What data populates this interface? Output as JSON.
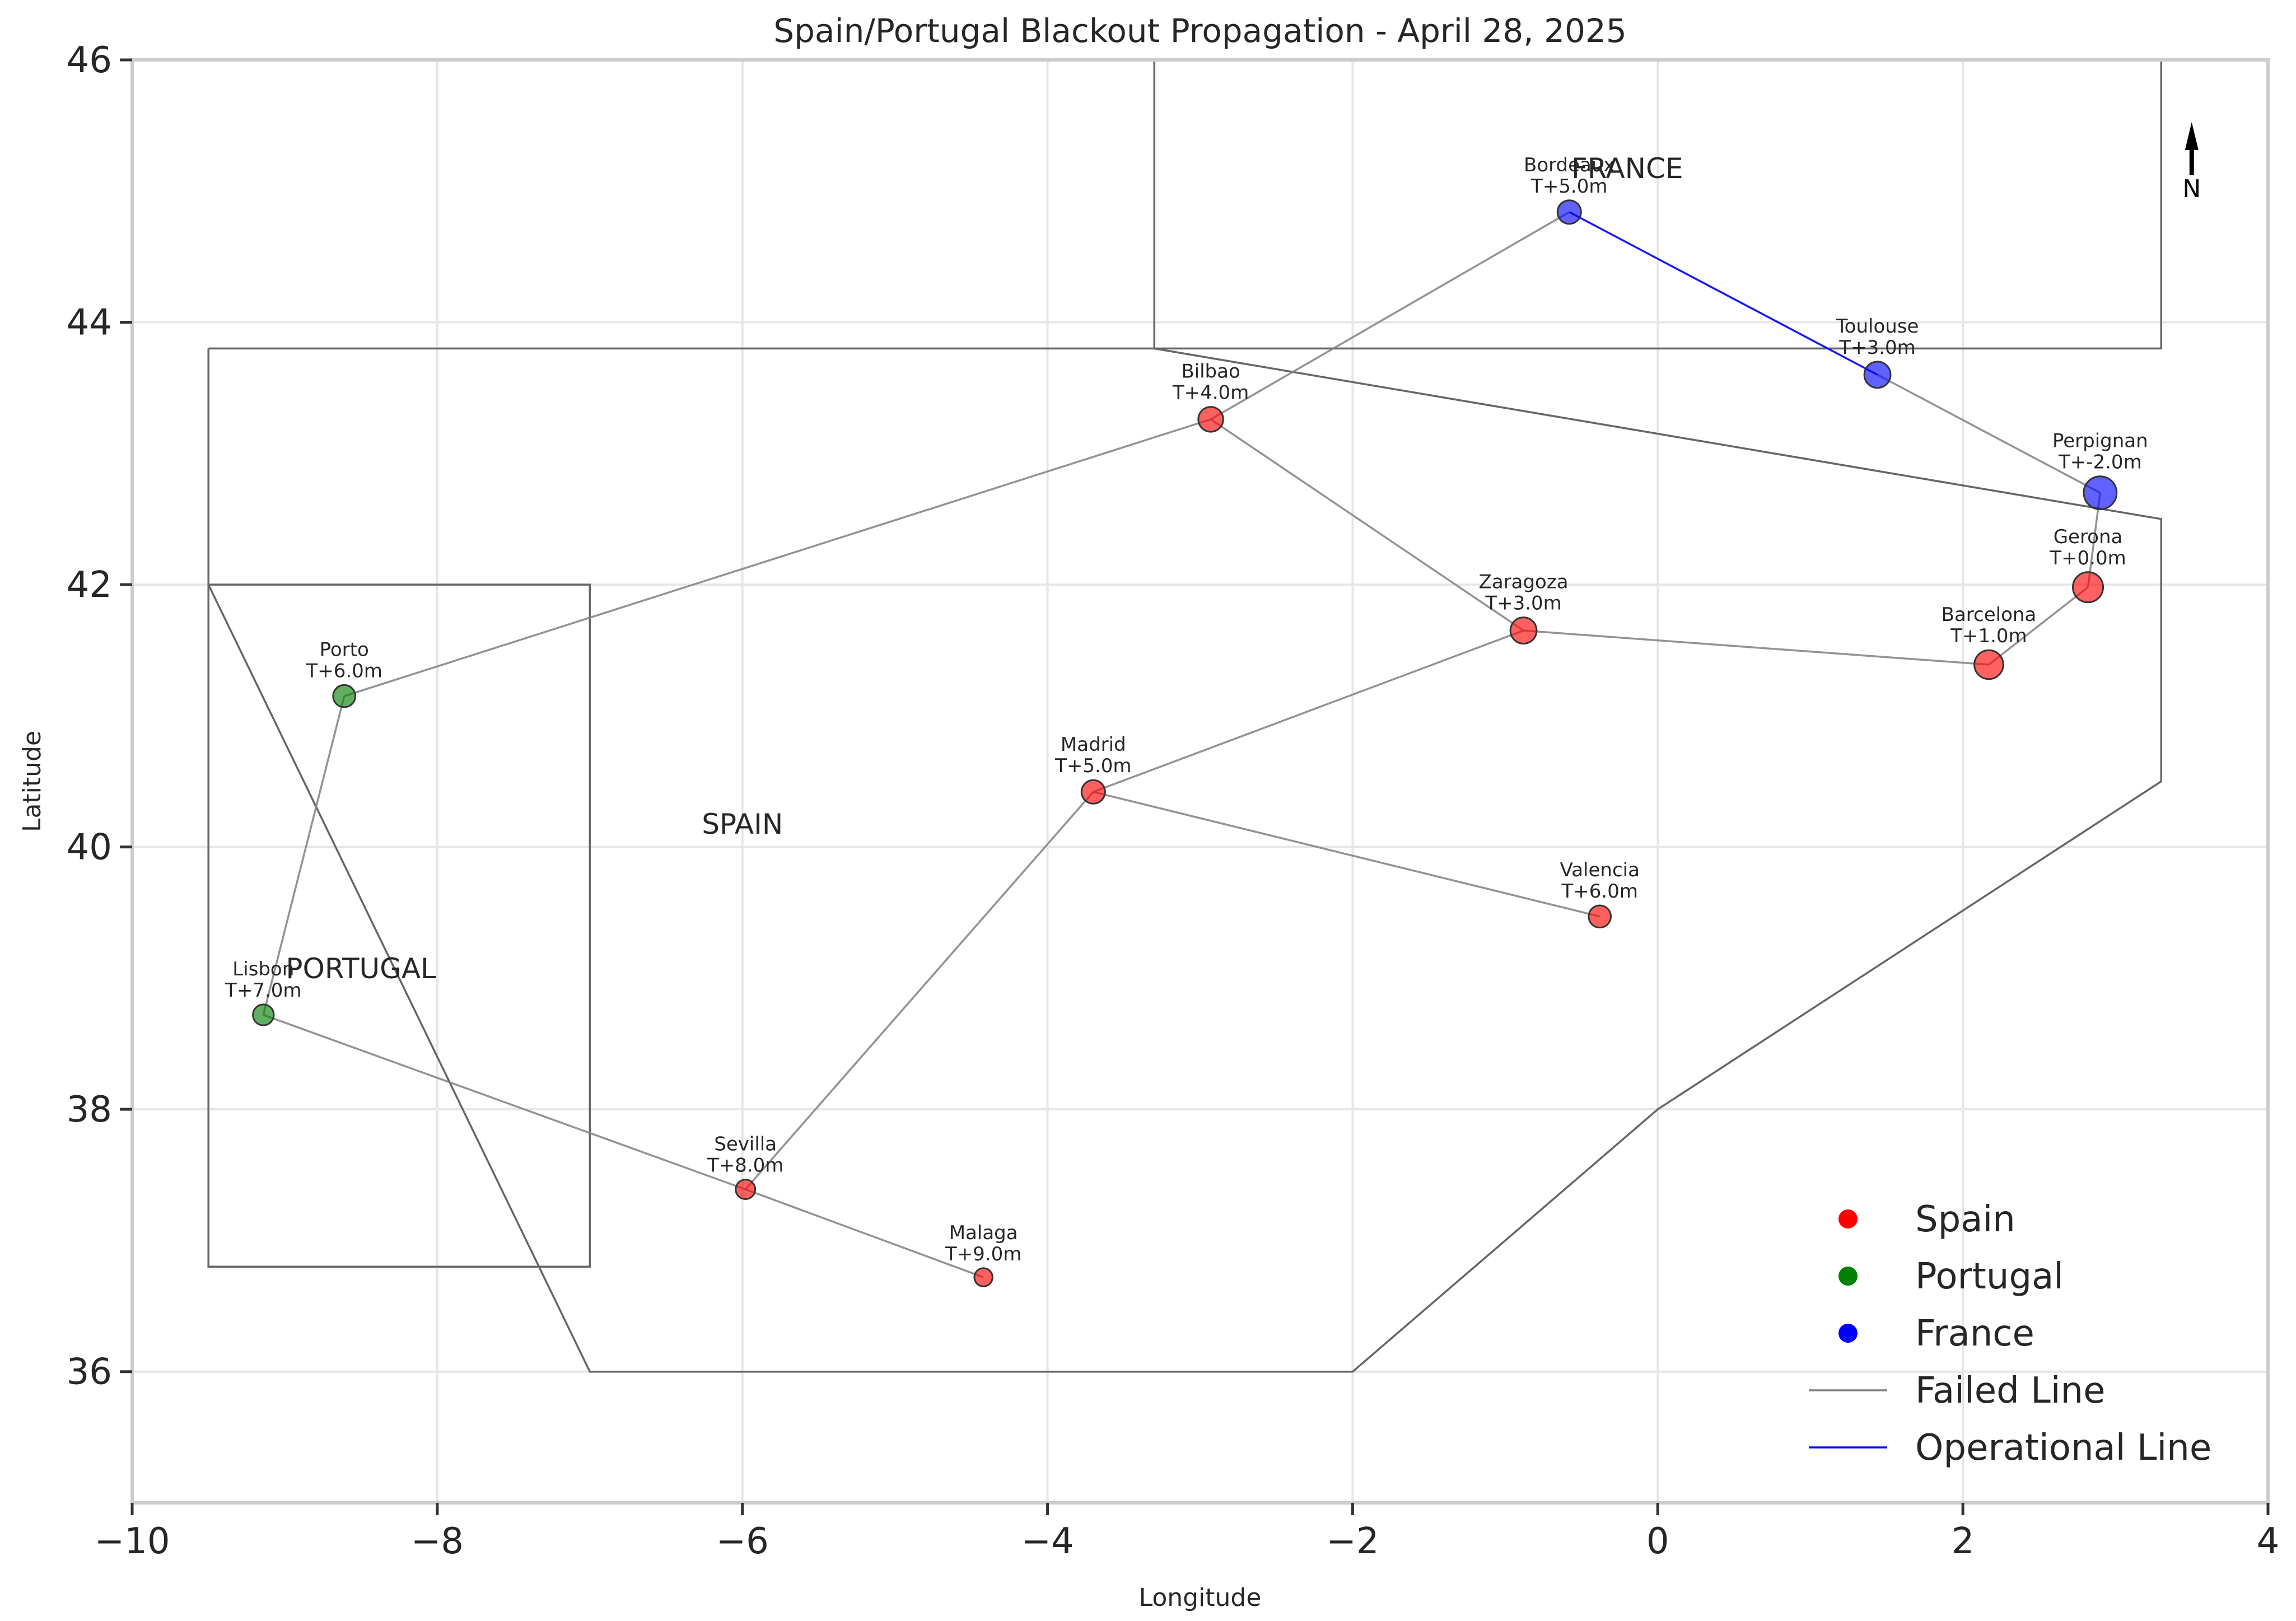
{
  "chart_data": {
    "type": "scatter",
    "title": "Spain/Portugal Blackout Propagation - April 28, 2025",
    "xlabel": "Longitude",
    "ylabel": "Latitude",
    "xlim": [
      -10,
      4
    ],
    "ylim": [
      35,
      46
    ],
    "xticks": [
      -10,
      -8,
      -6,
      -4,
      -2,
      0,
      2,
      4
    ],
    "xtick_labels": [
      "−10",
      "−8",
      "−6",
      "−4",
      "−2",
      "0",
      "2",
      "4"
    ],
    "yticks": [
      36,
      38,
      40,
      42,
      44,
      46
    ],
    "ytick_labels": [
      "36",
      "38",
      "40",
      "42",
      "44",
      "46"
    ],
    "grid": true,
    "legend_position": "bottom-right",
    "colors": {
      "Spain": "#ff0000",
      "Portugal": "#008000",
      "France": "#0000ff",
      "failed_line": "#808080",
      "operational_line": "#0000ff",
      "border": "#666666"
    },
    "regions": [
      {
        "name": "SPAIN",
        "label_lon": -6.0,
        "label_lat": 40.1,
        "outline": [
          [
            -9.5,
            43.8
          ],
          [
            -3.3,
            43.8
          ],
          [
            3.3,
            42.5
          ],
          [
            3.3,
            40.5
          ],
          [
            0,
            38
          ],
          [
            -2,
            36
          ],
          [
            -7,
            36
          ],
          [
            -9.5,
            42
          ],
          [
            -9.5,
            43.8
          ]
        ]
      },
      {
        "name": "PORTUGAL",
        "label_lon": -8.5,
        "label_lat": 39.0,
        "outline": [
          [
            -9.5,
            42
          ],
          [
            -7,
            42
          ],
          [
            -7,
            36.8
          ],
          [
            -9.5,
            36.8
          ],
          [
            -9.5,
            42
          ]
        ]
      },
      {
        "name": "FRANCE",
        "label_lon": -0.2,
        "label_lat": 45.1,
        "outline": [
          [
            -3.3,
            46
          ],
          [
            -3.3,
            43.8
          ],
          [
            3.3,
            43.8
          ],
          [
            3.3,
            46
          ]
        ]
      }
    ],
    "nodes": [
      {
        "name": "Gerona",
        "time": "T+0.0m",
        "lon": 2.82,
        "lat": 41.98,
        "country": "Spain"
      },
      {
        "name": "Barcelona",
        "time": "T+1.0m",
        "lon": 2.17,
        "lat": 41.39,
        "country": "Spain"
      },
      {
        "name": "Zaragoza",
        "time": "T+3.0m",
        "lon": -0.88,
        "lat": 41.65,
        "country": "Spain"
      },
      {
        "name": "Bilbao",
        "time": "T+4.0m",
        "lon": -2.93,
        "lat": 43.26,
        "country": "Spain"
      },
      {
        "name": "Madrid",
        "time": "T+5.0m",
        "lon": -3.7,
        "lat": 40.42,
        "country": "Spain"
      },
      {
        "name": "Valencia",
        "time": "T+6.0m",
        "lon": -0.38,
        "lat": 39.47,
        "country": "Spain"
      },
      {
        "name": "Sevilla",
        "time": "T+8.0m",
        "lon": -5.98,
        "lat": 37.39,
        "country": "Spain"
      },
      {
        "name": "Malaga",
        "time": "T+9.0m",
        "lon": -4.42,
        "lat": 36.72,
        "country": "Spain"
      },
      {
        "name": "Porto",
        "time": "T+6.0m",
        "lon": -8.61,
        "lat": 41.15,
        "country": "Portugal"
      },
      {
        "name": "Lisbon",
        "time": "T+7.0m",
        "lon": -9.14,
        "lat": 38.72,
        "country": "Portugal"
      },
      {
        "name": "Perpignan",
        "time": "T+-2.0m",
        "lon": 2.9,
        "lat": 42.7,
        "country": "France"
      },
      {
        "name": "Toulouse",
        "time": "T+3.0m",
        "lon": 1.44,
        "lat": 43.6,
        "country": "France"
      },
      {
        "name": "Bordeaux",
        "time": "T+5.0m",
        "lon": -0.58,
        "lat": 44.84,
        "country": "France"
      }
    ],
    "lines": [
      {
        "from": "Gerona",
        "to": "Perpignan",
        "status": "Failed"
      },
      {
        "from": "Gerona",
        "to": "Barcelona",
        "status": "Failed"
      },
      {
        "from": "Barcelona",
        "to": "Zaragoza",
        "status": "Failed"
      },
      {
        "from": "Zaragoza",
        "to": "Bilbao",
        "status": "Failed"
      },
      {
        "from": "Zaragoza",
        "to": "Madrid",
        "status": "Failed"
      },
      {
        "from": "Madrid",
        "to": "Valencia",
        "status": "Failed"
      },
      {
        "from": "Madrid",
        "to": "Sevilla",
        "status": "Failed"
      },
      {
        "from": "Sevilla",
        "to": "Malaga",
        "status": "Failed"
      },
      {
        "from": "Sevilla",
        "to": "Lisbon",
        "status": "Failed"
      },
      {
        "from": "Lisbon",
        "to": "Porto",
        "status": "Failed"
      },
      {
        "from": "Porto",
        "to": "Bilbao",
        "status": "Failed"
      },
      {
        "from": "Bilbao",
        "to": "Bordeaux",
        "status": "Failed"
      },
      {
        "from": "Perpignan",
        "to": "Toulouse",
        "status": "Failed"
      },
      {
        "from": "Toulouse",
        "to": "Bordeaux",
        "status": "Operational"
      }
    ],
    "legend": [
      {
        "label": "Spain",
        "kind": "marker",
        "color": "#ff0000"
      },
      {
        "label": "Portugal",
        "kind": "marker",
        "color": "#008000"
      },
      {
        "label": "France",
        "kind": "marker",
        "color": "#0000ff"
      },
      {
        "label": "Failed Line",
        "kind": "line",
        "color": "#808080"
      },
      {
        "label": "Operational Line",
        "kind": "line",
        "color": "#0000ff"
      }
    ],
    "north_arrow_label": "N"
  }
}
